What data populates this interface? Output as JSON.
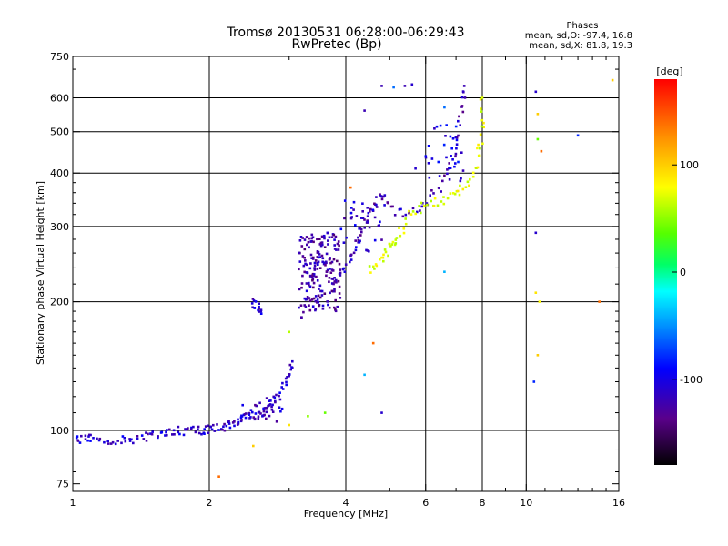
{
  "chart_data": {
    "type": "scatter",
    "title": "Tromsø 20130531 06:28:00-06:29:43",
    "subtitle": "RwPretec (Bp)",
    "xlabel": "Frequency [MHz]",
    "ylabel": "Stationary phase Virtual Height [km]",
    "x_scale": "log",
    "y_scale": "log",
    "xlim": [
      1,
      16
    ],
    "ylim": [
      72,
      750
    ],
    "x_ticks": [
      {
        "value": 1,
        "label": "1"
      },
      {
        "value": 2,
        "label": "2"
      },
      {
        "value": 4,
        "label": "4"
      },
      {
        "value": 6,
        "label": "6"
      },
      {
        "value": 8,
        "label": "8"
      },
      {
        "value": 10,
        "label": "10"
      },
      {
        "value": 16,
        "label": "16"
      }
    ],
    "y_ticks": [
      {
        "value": 75,
        "label": "75"
      },
      {
        "value": 100,
        "label": "100"
      },
      {
        "value": 200,
        "label": "200"
      },
      {
        "value": 300,
        "label": "300"
      },
      {
        "value": 400,
        "label": "400"
      },
      {
        "value": 500,
        "label": "500"
      },
      {
        "value": 600,
        "label": "600"
      },
      {
        "value": 750,
        "label": "750"
      }
    ],
    "x_gridlines": [
      2,
      4,
      6,
      8,
      10
    ],
    "y_gridlines": [
      100,
      200,
      300,
      400,
      500,
      600
    ],
    "grid": true,
    "colorbar": {
      "label": "[deg]",
      "range": [
        -180,
        180
      ],
      "ticks": [
        {
          "value": 100,
          "label": "100"
        },
        {
          "value": 0,
          "label": "0"
        },
        {
          "value": -100,
          "label": "-100"
        }
      ]
    },
    "stats": {
      "heading": "Phases",
      "line_o": "mean, sd,O: -97.4, 16.8",
      "line_x": "mean, sd,X:  81.8, 19.3"
    },
    "traces": [
      {
        "name": "",
        "phase": -110,
        "points": [
          [
            1.0,
            96
          ],
          [
            1.05,
            95
          ],
          [
            1.1,
            96
          ],
          [
            1.2,
            95
          ],
          [
            1.3,
            95
          ],
          [
            1.4,
            96
          ],
          [
            1.5,
            97
          ],
          [
            1.6,
            99
          ],
          [
            1.7,
            100
          ],
          [
            1.8,
            100
          ],
          [
            1.9,
            100
          ],
          [
            2.0,
            101
          ],
          [
            2.1,
            101
          ],
          [
            2.2,
            103
          ],
          [
            2.3,
            105
          ],
          [
            2.4,
            107
          ],
          [
            2.5,
            108
          ],
          [
            2.6,
            110
          ],
          [
            2.7,
            113
          ],
          [
            2.8,
            118
          ],
          [
            2.9,
            125
          ],
          [
            3.0,
            135
          ],
          [
            3.05,
            145
          ]
        ]
      },
      {
        "name": "",
        "phase": -110,
        "points": [
          [
            2.5,
            200
          ],
          [
            2.55,
            195
          ],
          [
            2.6,
            190
          ]
        ]
      },
      {
        "name": "",
        "phase": -120,
        "points": [
          [
            3.2,
            185
          ],
          [
            3.3,
            205
          ],
          [
            3.4,
            240
          ],
          [
            3.5,
            260
          ],
          [
            3.6,
            240
          ],
          [
            3.8,
            220
          ],
          [
            4.0,
            240
          ],
          [
            4.2,
            270
          ],
          [
            4.4,
            300
          ],
          [
            4.6,
            330
          ],
          [
            4.8,
            360
          ],
          [
            5.0,
            330
          ],
          [
            5.5,
            320
          ],
          [
            6.0,
            340
          ],
          [
            6.5,
            380
          ],
          [
            7.0,
            460
          ],
          [
            7.2,
            560
          ],
          [
            7.3,
            640
          ]
        ]
      },
      {
        "name": "",
        "phase": 70,
        "points": [
          [
            4.5,
            240
          ],
          [
            4.8,
            250
          ],
          [
            5.0,
            265
          ],
          [
            5.2,
            280
          ],
          [
            5.5,
            320
          ],
          [
            6.0,
            335
          ],
          [
            6.5,
            345
          ],
          [
            7.0,
            355
          ],
          [
            7.5,
            380
          ],
          [
            7.8,
            430
          ],
          [
            8.0,
            500
          ],
          [
            8.0,
            600
          ]
        ]
      }
    ],
    "clusters": [
      {
        "phase": -125,
        "f_range": [
          3.15,
          3.9
        ],
        "h_range": [
          190,
          290
        ],
        "count": 160
      },
      {
        "phase": -115,
        "f_range": [
          2.3,
          2.9
        ],
        "h_range": [
          103,
          120
        ],
        "count": 25
      },
      {
        "phase": -110,
        "f_range": [
          3.9,
          5.0
        ],
        "h_range": [
          260,
          345
        ],
        "count": 40
      },
      {
        "phase": -100,
        "f_range": [
          6.0,
          7.3
        ],
        "h_range": [
          360,
          520
        ],
        "count": 35
      }
    ],
    "scattered_points": [
      {
        "f": 4.1,
        "h": 370,
        "phase": 140
      },
      {
        "f": 4.4,
        "h": 560,
        "phase": -120
      },
      {
        "f": 4.8,
        "h": 640,
        "phase": -120
      },
      {
        "f": 5.1,
        "h": 635,
        "phase": -60
      },
      {
        "f": 5.4,
        "h": 640,
        "phase": -120
      },
      {
        "f": 5.6,
        "h": 645,
        "phase": -110
      },
      {
        "f": 5.7,
        "h": 410,
        "phase": -110
      },
      {
        "f": 6.6,
        "h": 235,
        "phase": -40
      },
      {
        "f": 6.6,
        "h": 570,
        "phase": -60
      },
      {
        "f": 4.6,
        "h": 160,
        "phase": 140
      },
      {
        "f": 4.4,
        "h": 135,
        "phase": -40
      },
      {
        "f": 4.8,
        "h": 110,
        "phase": -110
      },
      {
        "f": 3.3,
        "h": 108,
        "phase": 50
      },
      {
        "f": 3.0,
        "h": 103,
        "phase": 90
      },
      {
        "f": 3.6,
        "h": 110,
        "phase": 40
      },
      {
        "f": 2.5,
        "h": 92,
        "phase": 100
      },
      {
        "f": 2.1,
        "h": 78,
        "phase": 140
      },
      {
        "f": 3.0,
        "h": 170,
        "phase": 60
      },
      {
        "f": 10.5,
        "h": 290,
        "phase": -110
      },
      {
        "f": 10.5,
        "h": 210,
        "phase": 90
      },
      {
        "f": 10.6,
        "h": 550,
        "phase": 100
      },
      {
        "f": 10.6,
        "h": 480,
        "phase": 40
      },
      {
        "f": 10.8,
        "h": 450,
        "phase": 140
      },
      {
        "f": 10.5,
        "h": 620,
        "phase": -110
      },
      {
        "f": 10.6,
        "h": 150,
        "phase": 100
      },
      {
        "f": 10.4,
        "h": 130,
        "phase": -80
      },
      {
        "f": 10.7,
        "h": 200,
        "phase": 80
      },
      {
        "f": 13.0,
        "h": 490,
        "phase": -80
      },
      {
        "f": 14.5,
        "h": 200,
        "phase": 140
      },
      {
        "f": 15.5,
        "h": 660,
        "phase": 100
      }
    ]
  }
}
